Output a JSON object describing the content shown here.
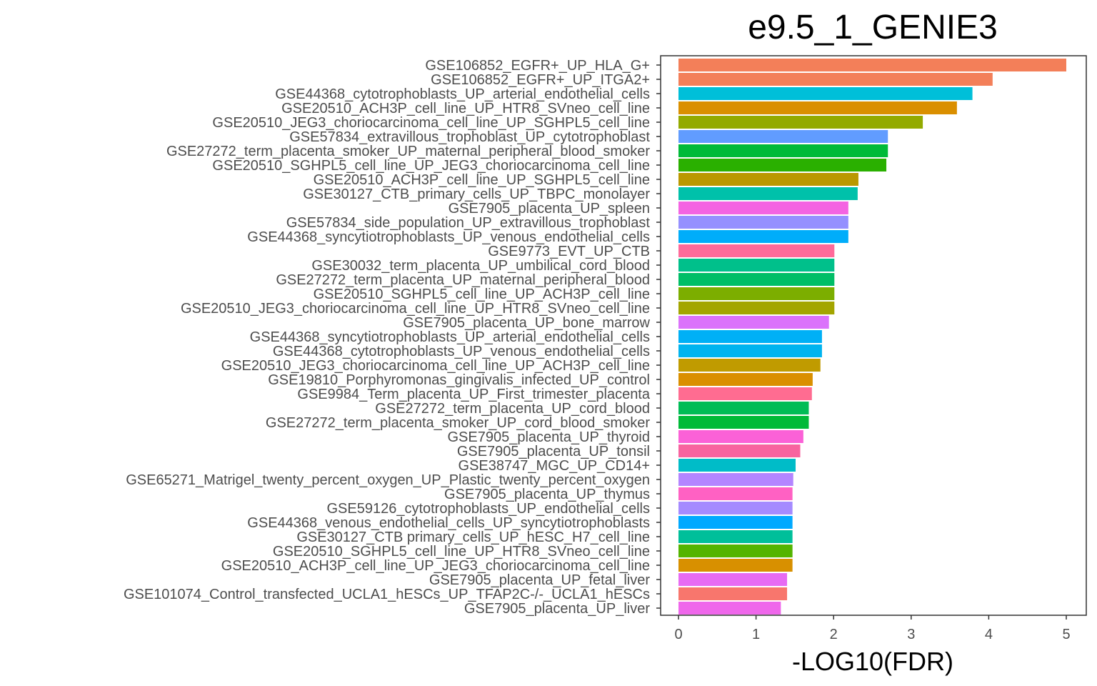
{
  "chart_data": {
    "type": "bar",
    "orientation": "horizontal",
    "title": "e9.5_1_GENIE3",
    "xlabel": "-LOG10(FDR)",
    "ylabel": "",
    "xlim": [
      0,
      5.2
    ],
    "xticks": [
      0,
      1,
      2,
      3,
      4,
      5
    ],
    "xtick_labels": [
      "0",
      "1",
      "2",
      "3",
      "4",
      "5"
    ],
    "grid": false,
    "legend": "none",
    "categories": [
      "GSE106852_EGFR+_UP_HLA_G+",
      "GSE106852_EGFR+_UP_ITGA2+",
      "GSE44368_cytotrophoblasts_UP_arterial_endothelial_cells",
      "GSE20510_ACH3P_cell_line_UP_HTR8_SVneo_cell_line",
      "GSE20510_JEG3_choriocarcinoma_cell_line_UP_SGHPL5_cell_line",
      "GSE57834_extravillous_trophoblast_UP_cytotrophoblast",
      "GSE27272_term_placenta_smoker_UP_maternal_peripheral_blood_smoker",
      "GSE20510_SGHPL5_cell_line_UP_JEG3_choriocarcinoma_cell_line",
      "GSE20510_ACH3P_cell_line_UP_SGHPL5_cell_line",
      "GSE30127_CTB_primary_cells_UP_TBPC_monolayer",
      "GSE7905_placenta_UP_spleen",
      "GSE57834_side_population_UP_extravillous_trophoblast",
      "GSE44368_syncytiotrophoblasts_UP_venous_endothelial_cells",
      "GSE9773_EVT_UP_CTB",
      "GSE30032_term_placenta_UP_umbilical_cord_blood",
      "GSE27272_term_placenta_UP_maternal_peripheral_blood",
      "GSE20510_SGHPL5_cell_line_UP_ACH3P_cell_line",
      "GSE20510_JEG3_choriocarcinoma_cell_line_UP_HTR8_SVneo_cell_line",
      "GSE7905_placenta_UP_bone_marrow",
      "GSE44368_syncytiotrophoblasts_UP_arterial_endothelial_cells",
      "GSE44368_cytotrophoblasts_UP_venous_endothelial_cells",
      "GSE20510_JEG3_choriocarcinoma_cell_line_UP_ACH3P_cell_line",
      "GSE19810_Porphyromonas_gingivalis_infected_UP_control",
      "GSE9984_Term_placenta_UP_First_trimester_placenta",
      "GSE27272_term_placenta_UP_cord_blood",
      "GSE27272_term_placenta_smoker_UP_cord_blood_smoker",
      "GSE7905_placenta_UP_thyroid",
      "GSE7905_placenta_UP_tonsil",
      "GSE38747_MGC_UP_CD14+",
      "GSE65271_Matrigel_twenty_percent_oxygen_UP_Plastic_twenty_percent_oxygen",
      "GSE7905_placenta_UP_thymus",
      "GSE59126_cytotrophoblasts_UP_endothelial_cells",
      "GSE44368_venous_endothelial_cells_UP_syncytiotrophoblasts",
      "GSE30127_CTB primary_cells_UP_hESC_H7_cell_line",
      "GSE20510_SGHPL5_cell_line_UP_HTR8_SVneo_cell_line",
      "GSE20510_ACH3P_cell_line_UP_JEG3_choriocarcinoma_cell_line",
      "GSE7905_placenta_UP_fetal_liver",
      "GSE101074_Control_transfected_UCLA1_hESCs_UP_TFAP2C-/-_UCLA1_hESCs",
      "GSE7905_placenta_UP_liver"
    ],
    "values": [
      5.0,
      4.05,
      3.79,
      3.59,
      3.15,
      2.7,
      2.7,
      2.68,
      2.32,
      2.31,
      2.19,
      2.19,
      2.19,
      2.01,
      2.01,
      2.01,
      2.01,
      2.01,
      1.94,
      1.85,
      1.85,
      1.83,
      1.73,
      1.72,
      1.68,
      1.68,
      1.61,
      1.57,
      1.51,
      1.48,
      1.47,
      1.47,
      1.47,
      1.47,
      1.47,
      1.47,
      1.4,
      1.4,
      1.32
    ],
    "colors": [
      "#F37F59",
      "#F37F59",
      "#00BFD9",
      "#DA8F00",
      "#93AA00",
      "#619CFF",
      "#00BA38",
      "#2AB000",
      "#BA9800",
      "#00C1AA",
      "#F464E2",
      "#9590FF",
      "#00ADFA",
      "#FF6A9A",
      "#00C08B",
      "#00BE67",
      "#7CAE00",
      "#A3A500",
      "#DB72FB",
      "#00B0F6",
      "#00B4EF",
      "#C09B00",
      "#DA8F00",
      "#FF6C91",
      "#00BC56",
      "#00BA38",
      "#FB61D7",
      "#F8639F",
      "#00BCC8",
      "#B385FF",
      "#FF61C3",
      "#A58AFF",
      "#00A9FF",
      "#00BF9A",
      "#53B400",
      "#D89000",
      "#E76BF3",
      "#F8766D",
      "#EF67EB"
    ]
  }
}
